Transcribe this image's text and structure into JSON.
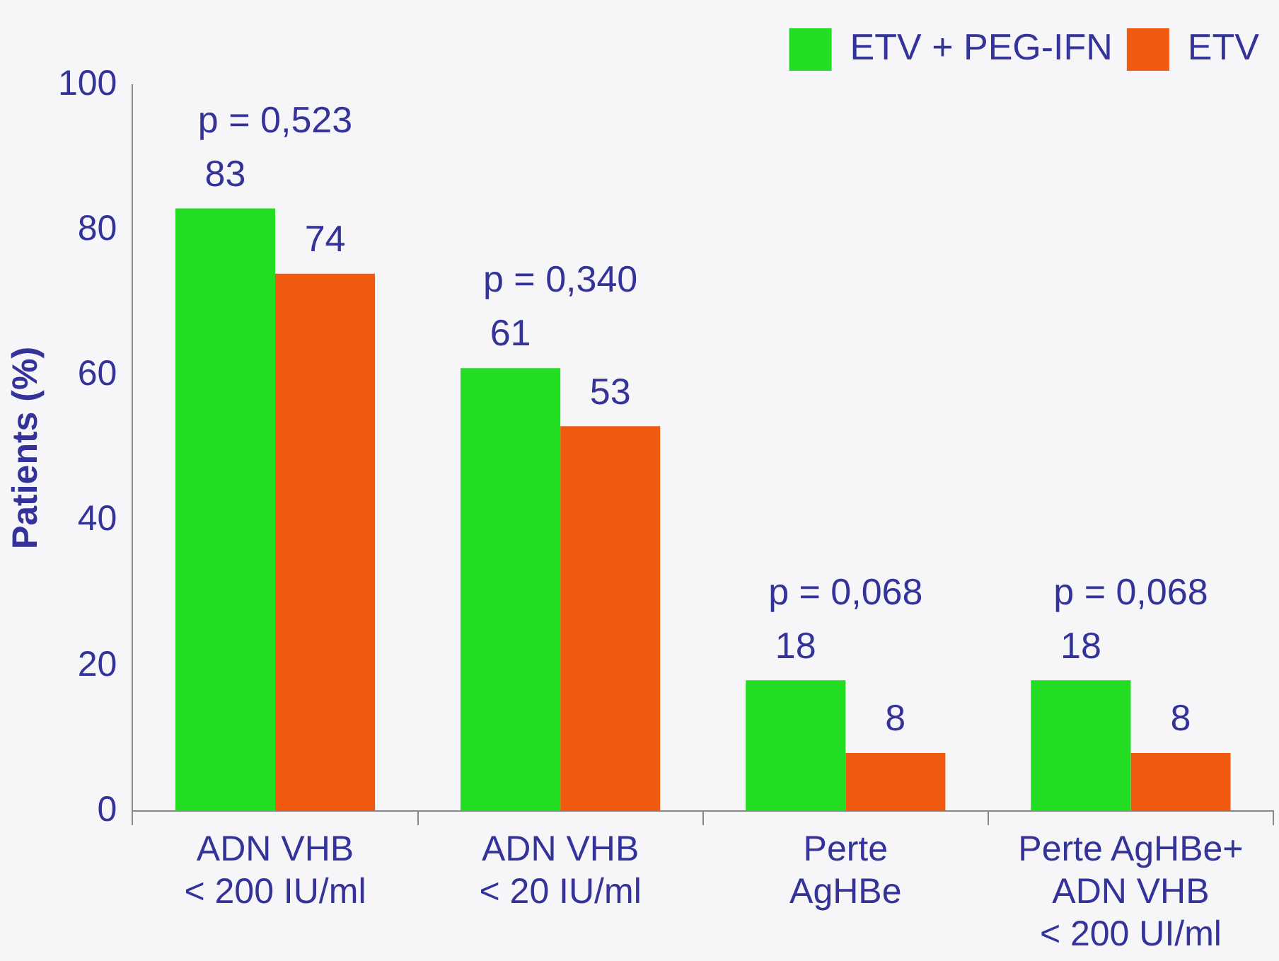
{
  "chart_data": {
    "type": "bar",
    "ylabel": "Patients (%)",
    "categories": [
      "ADN VHB\n< 200 IU/ml",
      "ADN VHB\n< 20 IU/ml",
      "Perte\nAgHBe",
      "Perte AgHBe+\nADN VHB\n< 200 UI/ml"
    ],
    "series": [
      {
        "name": "ETV + PEG-IFN",
        "color": "#22dd22",
        "values": [
          83,
          61,
          18,
          18
        ]
      },
      {
        "name": "ETV",
        "color": "#f05a10",
        "values": [
          74,
          53,
          8,
          8
        ]
      }
    ],
    "ylim": [
      0,
      100
    ],
    "yticks": [
      0,
      20,
      40,
      60,
      80,
      100
    ],
    "grid": false,
    "legend": "top right",
    "data_labels": true,
    "annotations": [
      "p = 0,523",
      "p = 0,340",
      "p = 0,068",
      "p = 0,068"
    ]
  }
}
